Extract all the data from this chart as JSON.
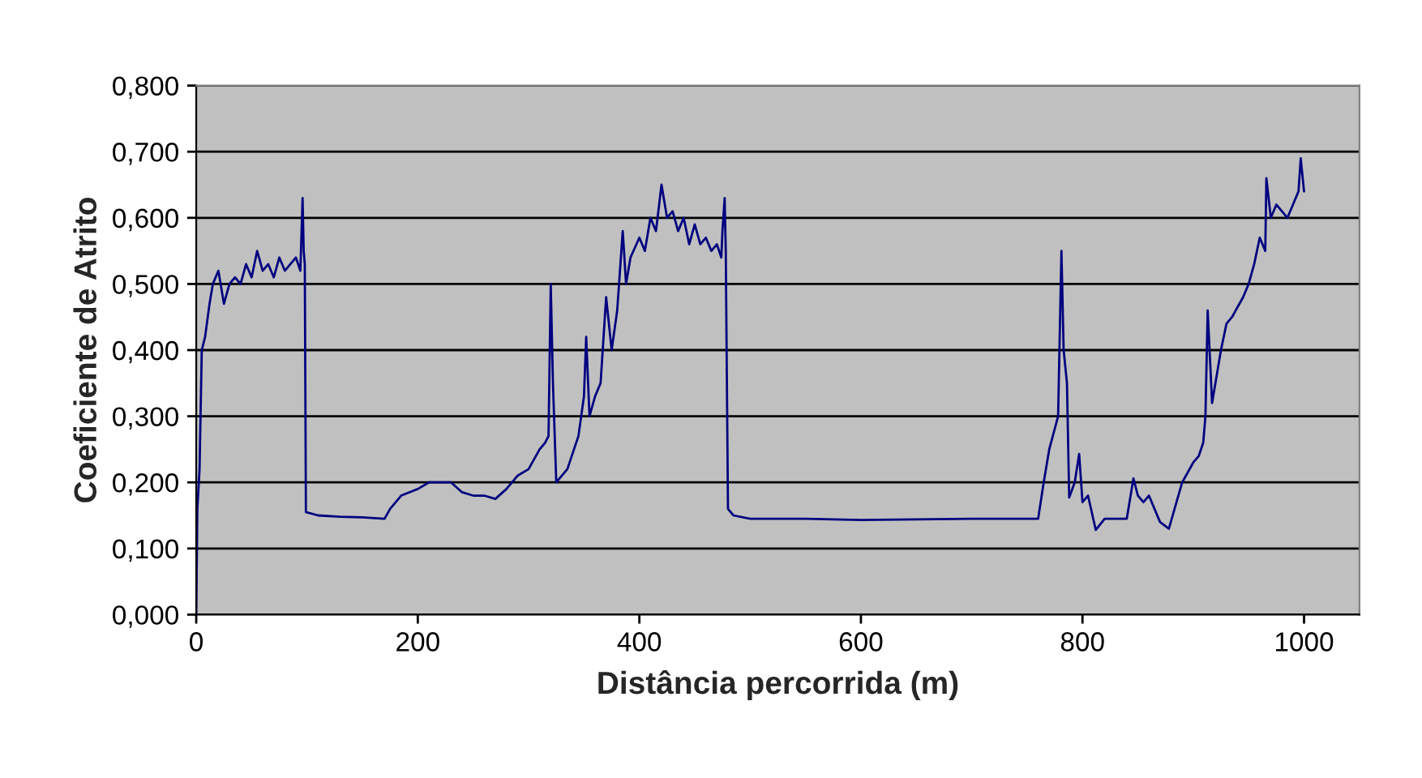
{
  "chart_data": {
    "type": "line",
    "xlabel": "Distância percorrida (m)",
    "ylabel": "Coeficiente de Atrito",
    "xlim": [
      0,
      1050
    ],
    "xticks": [
      0,
      200,
      400,
      600,
      800,
      1000
    ],
    "ylim": [
      0,
      0.8
    ],
    "yticks": [
      {
        "value": 0,
        "label": "0,000"
      },
      {
        "value": 0.1,
        "label": "0,100"
      },
      {
        "value": 0.2,
        "label": "0,200"
      },
      {
        "value": 0.3,
        "label": "0,300"
      },
      {
        "value": 0.4,
        "label": "0,400"
      },
      {
        "value": 0.5,
        "label": "0,500"
      },
      {
        "value": 0.6,
        "label": "0,600"
      },
      {
        "value": 0.7,
        "label": "0,700"
      },
      {
        "value": 0.8,
        "label": "0,800"
      }
    ],
    "grid": "y",
    "legend": false,
    "marker": "none",
    "line_style": "solid",
    "series": [
      {
        "color": "#000080",
        "x": [
          0,
          1,
          3,
          5,
          8,
          12,
          15,
          20,
          25,
          30,
          35,
          40,
          45,
          50,
          55,
          60,
          65,
          70,
          75,
          80,
          85,
          90,
          94,
          96,
          97,
          98,
          99,
          110,
          130,
          150,
          170,
          175,
          185,
          200,
          210,
          220,
          230,
          240,
          250,
          260,
          270,
          280,
          290,
          300,
          310,
          315,
          318,
          320,
          322,
          325,
          335,
          345,
          350,
          352,
          355,
          360,
          365,
          370,
          375,
          380,
          385,
          388,
          392,
          400,
          405,
          410,
          415,
          420,
          425,
          430,
          435,
          440,
          445,
          450,
          455,
          460,
          465,
          470,
          474,
          475,
          477,
          478,
          480,
          485,
          500,
          550,
          600,
          650,
          700,
          760,
          765,
          770,
          778,
          781,
          783,
          786,
          788,
          793,
          797,
          800,
          805,
          812,
          820,
          840,
          846,
          850,
          855,
          860,
          865,
          870,
          878,
          890,
          900,
          905,
          909,
          911,
          913,
          917,
          925,
          930,
          935,
          945,
          950,
          955,
          960,
          965,
          966,
          970,
          975,
          980,
          985,
          990,
          995,
          997,
          1000
        ],
        "values": [
          0.0,
          0.16,
          0.22,
          0.4,
          0.42,
          0.47,
          0.5,
          0.52,
          0.47,
          0.5,
          0.51,
          0.5,
          0.53,
          0.51,
          0.55,
          0.52,
          0.53,
          0.51,
          0.54,
          0.52,
          0.53,
          0.54,
          0.52,
          0.63,
          0.55,
          0.53,
          0.155,
          0.15,
          0.148,
          0.147,
          0.145,
          0.16,
          0.18,
          0.19,
          0.2,
          0.2,
          0.2,
          0.185,
          0.18,
          0.18,
          0.175,
          0.19,
          0.21,
          0.22,
          0.25,
          0.26,
          0.27,
          0.5,
          0.35,
          0.2,
          0.22,
          0.27,
          0.33,
          0.42,
          0.3,
          0.33,
          0.35,
          0.48,
          0.4,
          0.46,
          0.58,
          0.5,
          0.54,
          0.57,
          0.55,
          0.6,
          0.58,
          0.65,
          0.6,
          0.61,
          0.58,
          0.6,
          0.56,
          0.59,
          0.56,
          0.57,
          0.55,
          0.56,
          0.54,
          0.58,
          0.63,
          0.55,
          0.16,
          0.15,
          0.145,
          0.145,
          0.143,
          0.144,
          0.145,
          0.145,
          0.2,
          0.25,
          0.3,
          0.55,
          0.4,
          0.35,
          0.177,
          0.2,
          0.243,
          0.17,
          0.18,
          0.128,
          0.145,
          0.145,
          0.206,
          0.18,
          0.17,
          0.18,
          0.16,
          0.14,
          0.13,
          0.2,
          0.23,
          0.24,
          0.26,
          0.3,
          0.46,
          0.32,
          0.4,
          0.44,
          0.45,
          0.48,
          0.5,
          0.53,
          0.57,
          0.55,
          0.66,
          0.6,
          0.62,
          0.61,
          0.6,
          0.62,
          0.64,
          0.69,
          0.64
        ]
      }
    ]
  }
}
